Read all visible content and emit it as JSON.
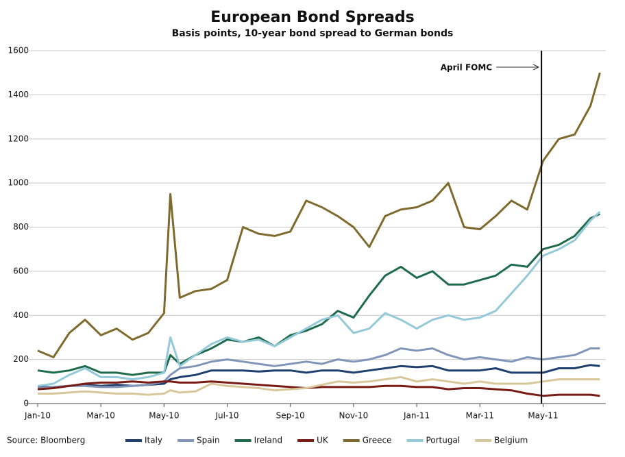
{
  "chart_data": {
    "type": "line",
    "title": "European Bond Spreads",
    "subtitle": "Basis points, 10-year bond spread to German bonds",
    "source": "Source: Bloomberg",
    "annotation": {
      "text": "April FOMC",
      "x": 15.95
    },
    "x": [
      0,
      0.5,
      1,
      1.5,
      2,
      2.5,
      3,
      3.5,
      4,
      4.2,
      4.5,
      5,
      5.5,
      6,
      6.5,
      7,
      7.5,
      8,
      8.5,
      9,
      9.5,
      10,
      10.5,
      11,
      11.5,
      12,
      12.5,
      13,
      13.5,
      14,
      14.5,
      15,
      15.5,
      16,
      16.5,
      17,
      17.5,
      17.8
    ],
    "xlim": [
      0,
      17.9
    ],
    "xticks": [
      {
        "value": 0,
        "label": "Jan-10"
      },
      {
        "value": 2,
        "label": "Mar-10"
      },
      {
        "value": 4,
        "label": "May-10"
      },
      {
        "value": 6,
        "label": "Jul-10"
      },
      {
        "value": 8,
        "label": "Sep-10"
      },
      {
        "value": 10,
        "label": "Nov-10"
      },
      {
        "value": 12,
        "label": "Jan-11"
      },
      {
        "value": 14,
        "label": "Mar-11"
      },
      {
        "value": 16,
        "label": "May-11"
      }
    ],
    "ylim": [
      0,
      1600
    ],
    "yticks": [
      0,
      200,
      400,
      600,
      800,
      1000,
      1200,
      1400,
      1600
    ],
    "grid": true,
    "series": [
      {
        "name": "Italy",
        "color": "#1f3f6e",
        "values": [
          75,
          75,
          80,
          85,
          80,
          85,
          80,
          85,
          90,
          110,
          120,
          130,
          150,
          150,
          150,
          145,
          150,
          150,
          140,
          150,
          150,
          140,
          150,
          160,
          170,
          165,
          170,
          150,
          150,
          150,
          160,
          140,
          140,
          140,
          160,
          160,
          175,
          170
        ]
      },
      {
        "name": "Spain",
        "color": "#8096b8",
        "values": [
          70,
          75,
          80,
          80,
          75,
          75,
          80,
          85,
          100,
          130,
          160,
          170,
          190,
          200,
          190,
          180,
          170,
          180,
          190,
          180,
          200,
          190,
          200,
          220,
          250,
          240,
          250,
          220,
          200,
          210,
          200,
          190,
          210,
          200,
          210,
          220,
          250,
          250
        ]
      },
      {
        "name": "Ireland",
        "color": "#1e6b4c",
        "values": [
          150,
          140,
          150,
          170,
          140,
          140,
          130,
          140,
          140,
          220,
          180,
          220,
          250,
          290,
          280,
          300,
          260,
          310,
          330,
          360,
          420,
          390,
          490,
          580,
          620,
          570,
          600,
          540,
          540,
          560,
          580,
          630,
          620,
          700,
          720,
          760,
          840,
          860
        ]
      },
      {
        "name": "UK",
        "color": "#7a1a14",
        "values": [
          65,
          70,
          80,
          90,
          95,
          95,
          100,
          95,
          100,
          100,
          95,
          95,
          100,
          95,
          90,
          85,
          80,
          75,
          70,
          75,
          75,
          75,
          75,
          80,
          80,
          75,
          75,
          65,
          70,
          70,
          65,
          60,
          45,
          35,
          40,
          40,
          40,
          35
        ]
      },
      {
        "name": "Greece",
        "color": "#7d6a2c",
        "values": [
          240,
          210,
          320,
          380,
          310,
          340,
          290,
          320,
          410,
          950,
          480,
          510,
          520,
          560,
          800,
          770,
          760,
          780,
          920,
          890,
          850,
          800,
          710,
          850,
          880,
          890,
          920,
          1000,
          800,
          790,
          850,
          920,
          880,
          1100,
          1200,
          1220,
          1350,
          1500
        ]
      },
      {
        "name": "Portugal",
        "color": "#93c9d9",
        "values": [
          80,
          90,
          130,
          160,
          120,
          120,
          110,
          120,
          140,
          300,
          170,
          220,
          270,
          300,
          280,
          290,
          260,
          300,
          340,
          380,
          400,
          320,
          340,
          410,
          380,
          340,
          380,
          400,
          380,
          390,
          420,
          500,
          580,
          670,
          700,
          740,
          830,
          870
        ]
      },
      {
        "name": "Belgium",
        "color": "#d7c79a",
        "values": [
          45,
          45,
          50,
          55,
          50,
          45,
          45,
          40,
          45,
          60,
          50,
          55,
          90,
          80,
          75,
          70,
          60,
          65,
          70,
          85,
          100,
          95,
          100,
          110,
          120,
          100,
          110,
          100,
          90,
          100,
          90,
          90,
          90,
          100,
          110,
          110,
          110,
          110
        ]
      }
    ]
  }
}
